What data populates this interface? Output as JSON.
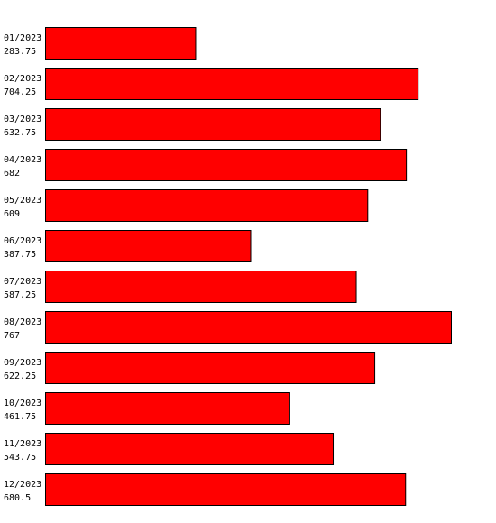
{
  "chart_data": {
    "type": "bar",
    "orientation": "horizontal",
    "categories": [
      "01/2023",
      "02/2023",
      "03/2023",
      "04/2023",
      "05/2023",
      "06/2023",
      "07/2023",
      "08/2023",
      "09/2023",
      "10/2023",
      "11/2023",
      "12/2023"
    ],
    "values": [
      283.75,
      704.25,
      632.75,
      682,
      609,
      387.75,
      587.25,
      767,
      622.25,
      461.75,
      543.75,
      680.5
    ],
    "color": "#ff0000"
  }
}
